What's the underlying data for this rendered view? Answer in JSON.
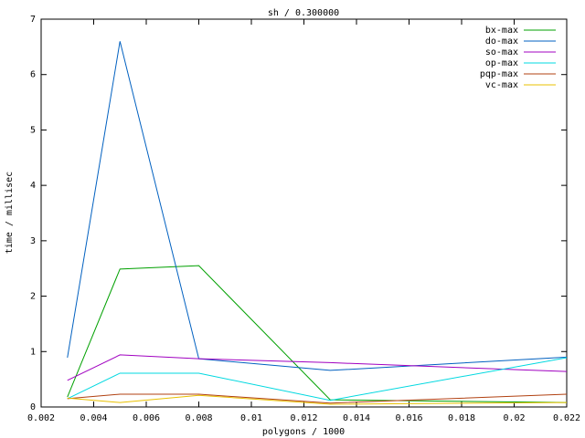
{
  "chart_data": {
    "type": "line",
    "title": "sh / 0.300000",
    "x_label": "polygons / 1000",
    "y_label": "time / millisec",
    "x": [
      0.003,
      0.005,
      0.008,
      0.013,
      0.022
    ],
    "series": [
      {
        "name": "bx-max",
        "color": "#00a000",
        "values": [
          0.18,
          2.49,
          2.55,
          0.13,
          0.08
        ]
      },
      {
        "name": "do-max",
        "color": "#0060c0",
        "values": [
          0.89,
          6.6,
          0.87,
          0.66,
          0.9
        ]
      },
      {
        "name": "so-max",
        "color": "#a000c0",
        "values": [
          0.48,
          0.94,
          0.87,
          0.8,
          0.64
        ]
      },
      {
        "name": "op-max",
        "color": "#00d8e0",
        "values": [
          0.15,
          0.61,
          0.61,
          0.12,
          0.89
        ]
      },
      {
        "name": "pqp-max",
        "color": "#b04010",
        "values": [
          0.15,
          0.23,
          0.23,
          0.07,
          0.23
        ]
      },
      {
        "name": "vc-max",
        "color": "#e8c000",
        "values": [
          0.16,
          0.08,
          0.21,
          0.05,
          0.08
        ]
      }
    ],
    "xlim": [
      0.002,
      0.022
    ],
    "xticks": [
      0.002,
      0.004,
      0.006,
      0.008,
      0.01,
      0.012,
      0.014,
      0.016,
      0.018,
      0.02,
      0.022
    ],
    "ylim": [
      0,
      7
    ],
    "yticks": [
      0,
      1,
      2,
      3,
      4,
      5,
      6,
      7
    ],
    "grid": false,
    "legend": "top-right"
  }
}
